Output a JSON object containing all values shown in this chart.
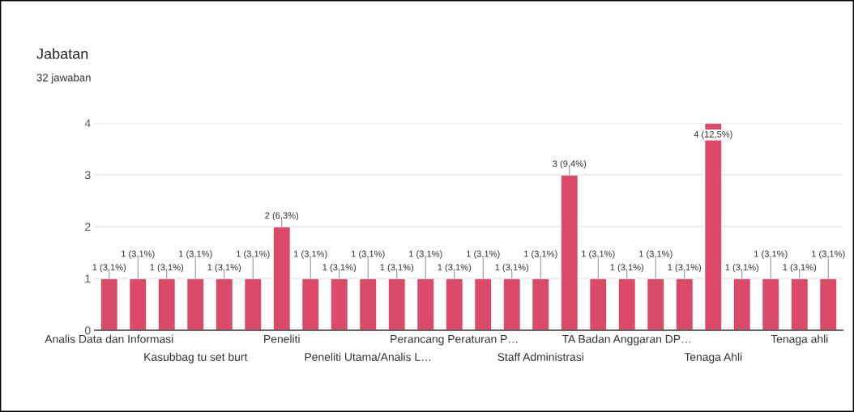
{
  "chart_data": {
    "type": "bar",
    "title": "Jabatan",
    "subtitle": "32 jawaban",
    "categories": [
      "Analis Data dan Informasi",
      null,
      null,
      "Kasubbag tu set burt",
      null,
      null,
      "Peneliti",
      null,
      null,
      "Peneliti Utama/Analis L…",
      null,
      null,
      "Perancang Peraturan P…",
      null,
      null,
      "Staff Administrasi",
      null,
      null,
      "TA Badan Anggaran DP…",
      null,
      null,
      "Tenaga Ahli",
      null,
      null,
      "Tenaga ahli",
      null
    ],
    "values": [
      1,
      1,
      1,
      1,
      1,
      1,
      2,
      1,
      1,
      1,
      1,
      1,
      1,
      1,
      1,
      1,
      3,
      1,
      1,
      1,
      1,
      4,
      1,
      1,
      1,
      1
    ],
    "value_labels": [
      "1 (3,1%)",
      "1 (3,1%)",
      "1 (3,1%)",
      "1 (3,1%)",
      "1 (3,1%)",
      "1 (3,1%)",
      "2 (6,3%)",
      "1 (3,1%)",
      "1 (3,1%)",
      "1 (3,1%)",
      "1 (3,1%)",
      "1 (3,1%)",
      "1 (3,1%)",
      "1 (3,1%)",
      "1 (3,1%)",
      "1 (3,1%)",
      "3 (9,4%)",
      "1 (3,1%)",
      "1 (3,1%)",
      "1 (3,1%)",
      "1 (3,1%)",
      "4 (12,5%)",
      "1 (3,1%)",
      "1 (3,1%)",
      "1 (3,1%)",
      "1 (3,1%)"
    ],
    "color": "#db4a69",
    "ylim": [
      0,
      4
    ],
    "yticks": [
      0,
      1,
      2,
      3,
      4
    ],
    "grid": "y"
  }
}
